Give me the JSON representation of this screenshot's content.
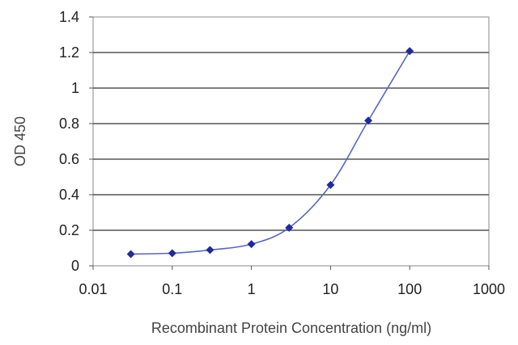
{
  "chart_data": {
    "type": "line",
    "title": "",
    "xlabel": "Recombinant Protein Concentration (ng/ml)",
    "ylabel": "OD 450",
    "x_scale": "log",
    "xlim": [
      0.01,
      1000
    ],
    "ylim": [
      0,
      1.4
    ],
    "x_ticks": [
      "0.01",
      "0.1",
      "1",
      "10",
      "100",
      "1000"
    ],
    "x_tick_values": [
      0.01,
      0.1,
      1,
      10,
      100,
      1000
    ],
    "y_ticks": [
      "0",
      "0.2",
      "0.4",
      "0.6",
      "0.8",
      "1",
      "1.2",
      "1.4"
    ],
    "y_tick_values": [
      0,
      0.2,
      0.4,
      0.6,
      0.8,
      1,
      1.2,
      1.4
    ],
    "grid": "horizontal",
    "legend": "none",
    "series": [
      {
        "x": [
          0.03,
          0.1,
          0.3,
          1,
          3,
          10,
          30,
          100
        ],
        "y": [
          0.066,
          0.071,
          0.089,
          0.122,
          0.214,
          0.455,
          0.817,
          1.208
        ],
        "color": "#1f2a9c"
      }
    ]
  }
}
